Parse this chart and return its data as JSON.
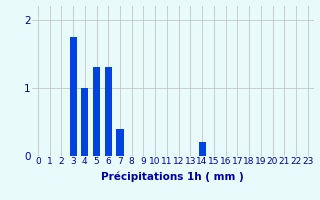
{
  "xlabel": "Précipitations 1h ( mm )",
  "bar_values": [
    0,
    0,
    0,
    1.75,
    1.0,
    1.3,
    1.3,
    0.4,
    0,
    0,
    0,
    0,
    0,
    0,
    0.2,
    0,
    0,
    0,
    0,
    0,
    0,
    0,
    0,
    0
  ],
  "bar_color": "#0044dd",
  "background_color": "#e8fafa",
  "grid_color": "#bbbbbb",
  "text_color": "#0000aa",
  "ylim": [
    0,
    2.2
  ],
  "yticks": [
    0,
    1,
    2
  ],
  "xlim": [
    -0.5,
    23.5
  ],
  "xtick_labels": [
    "0",
    "1",
    "2",
    "3",
    "4",
    "5",
    "6",
    "7",
    "8",
    "9",
    "10",
    "11",
    "12",
    "13",
    "14",
    "15",
    "16",
    "17",
    "18",
    "19",
    "20",
    "21",
    "22",
    "23"
  ],
  "xlabel_fontsize": 7.5,
  "tick_fontsize": 6.5,
  "bar_width": 0.6
}
